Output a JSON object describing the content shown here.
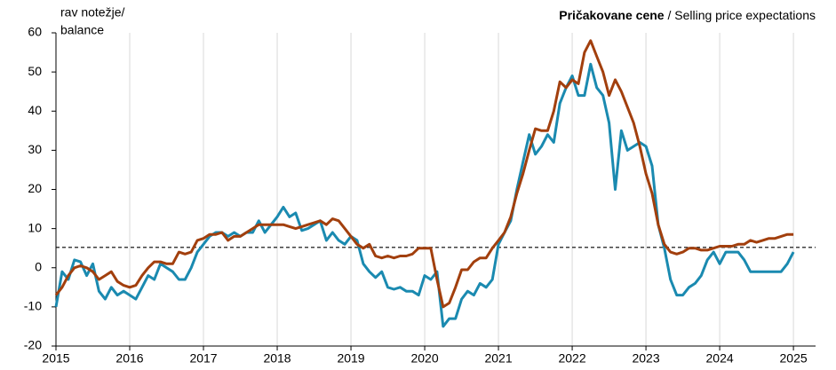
{
  "chart_data": {
    "type": "line",
    "title": "Pričakovane cene",
    "subtitle": "/ Selling price expectations",
    "y_label": [
      "rav notežje/",
      "balance"
    ],
    "x": [
      2015,
      2015.083,
      2015.167,
      2015.25,
      2015.333,
      2015.417,
      2015.5,
      2015.583,
      2015.667,
      2015.75,
      2015.833,
      2015.917,
      2016,
      2016.083,
      2016.167,
      2016.25,
      2016.333,
      2016.417,
      2016.5,
      2016.583,
      2016.667,
      2016.75,
      2016.833,
      2016.917,
      2017,
      2017.083,
      2017.167,
      2017.25,
      2017.333,
      2017.417,
      2017.5,
      2017.583,
      2017.667,
      2017.75,
      2017.833,
      2017.917,
      2018,
      2018.083,
      2018.167,
      2018.25,
      2018.333,
      2018.417,
      2018.5,
      2018.583,
      2018.667,
      2018.75,
      2018.833,
      2018.917,
      2019,
      2019.083,
      2019.167,
      2019.25,
      2019.333,
      2019.417,
      2019.5,
      2019.583,
      2019.667,
      2019.75,
      2019.833,
      2019.917,
      2020,
      2020.083,
      2020.167,
      2020.25,
      2020.333,
      2020.417,
      2020.5,
      2020.583,
      2020.667,
      2020.75,
      2020.833,
      2020.917,
      2021,
      2021.083,
      2021.167,
      2021.25,
      2021.333,
      2021.417,
      2021.5,
      2021.583,
      2021.667,
      2021.75,
      2021.833,
      2021.917,
      2022,
      2022.083,
      2022.167,
      2022.25,
      2022.333,
      2022.417,
      2022.5,
      2022.583,
      2022.667,
      2022.75,
      2022.833,
      2022.917,
      2023,
      2023.083,
      2023.167,
      2023.25,
      2023.333,
      2023.417,
      2023.5,
      2023.583,
      2023.667,
      2023.75,
      2023.833,
      2023.917,
      2024,
      2024.083,
      2024.167,
      2024.25,
      2024.333,
      2024.417,
      2024.5,
      2024.583,
      2024.667,
      2024.75,
      2024.833,
      2024.917,
      2025
    ],
    "series": [
      {
        "color": "#1a8ab0",
        "values": [
          -10,
          -1,
          -3,
          2,
          1.5,
          -2,
          1,
          -6,
          -8,
          -5,
          -7,
          -6,
          -7,
          -8,
          -5,
          -2,
          -3,
          1,
          0,
          -1,
          -3,
          -3,
          0,
          4,
          6,
          8,
          9,
          9,
          8,
          9,
          8,
          9,
          9,
          12,
          9,
          11,
          13,
          15.5,
          13,
          14,
          9.5,
          10,
          11,
          12,
          7,
          9,
          7,
          6,
          8,
          7,
          1,
          -1,
          -2.5,
          -1,
          -5,
          -5.5,
          -5,
          -6,
          -6,
          -7,
          -2,
          -3,
          -1,
          -15,
          -13,
          -13,
          -8,
          -6,
          -7,
          -4,
          -5,
          -3,
          6,
          9,
          12,
          20,
          27,
          34,
          29,
          31,
          34,
          32,
          42,
          46,
          49,
          44,
          44,
          52,
          46,
          44,
          37,
          20,
          35,
          30,
          31,
          32,
          31,
          26,
          11,
          5,
          -3,
          -7,
          -7,
          -5,
          -4,
          -2,
          2,
          4,
          1,
          4,
          4,
          4,
          2,
          -1,
          -1,
          -1,
          -1,
          -1,
          -1,
          1,
          4
        ]
      },
      {
        "color": "#a23f0d",
        "values": [
          -7,
          -5,
          -2,
          0,
          0.5,
          0,
          -1,
          -3,
          -2,
          -1,
          -3.5,
          -4.5,
          -5,
          -4.5,
          -2,
          0,
          1.5,
          1.5,
          1,
          1,
          4,
          3.5,
          4,
          7,
          7.5,
          8.5,
          8.5,
          9,
          7,
          8,
          8,
          9,
          10,
          11,
          11,
          11,
          11,
          11,
          10.5,
          10,
          10.5,
          11,
          11.5,
          12,
          11,
          12.5,
          12,
          10,
          8,
          6,
          5,
          6,
          3,
          2.5,
          3,
          2.5,
          3,
          3,
          3.5,
          5,
          5,
          5,
          -3,
          -10,
          -9,
          -5,
          -0.5,
          -0.5,
          1.5,
          2.5,
          2.5,
          5,
          7,
          9,
          13,
          19,
          24,
          30,
          35.5,
          35,
          35,
          40,
          47.5,
          46,
          48,
          47,
          55,
          58,
          54,
          50,
          44,
          48,
          45,
          41,
          37,
          31,
          24,
          19,
          11,
          6,
          4,
          3.5,
          4,
          5,
          5,
          4.5,
          4.5,
          5,
          5.5,
          5.5,
          5.5,
          6,
          6,
          7,
          6.5,
          7,
          7.5,
          7.5,
          8,
          8.5,
          8.5
        ]
      }
    ],
    "xlim": [
      2015,
      2025.3
    ],
    "xticks": [
      2015,
      2016,
      2017,
      2018,
      2019,
      2020,
      2021,
      2022,
      2023,
      2024,
      2025
    ],
    "ylim": [
      -20,
      60
    ],
    "yticks": [
      -20,
      -10,
      0,
      10,
      20,
      30,
      40,
      50,
      60
    ],
    "reference_line": 5.2,
    "grid": "x"
  }
}
